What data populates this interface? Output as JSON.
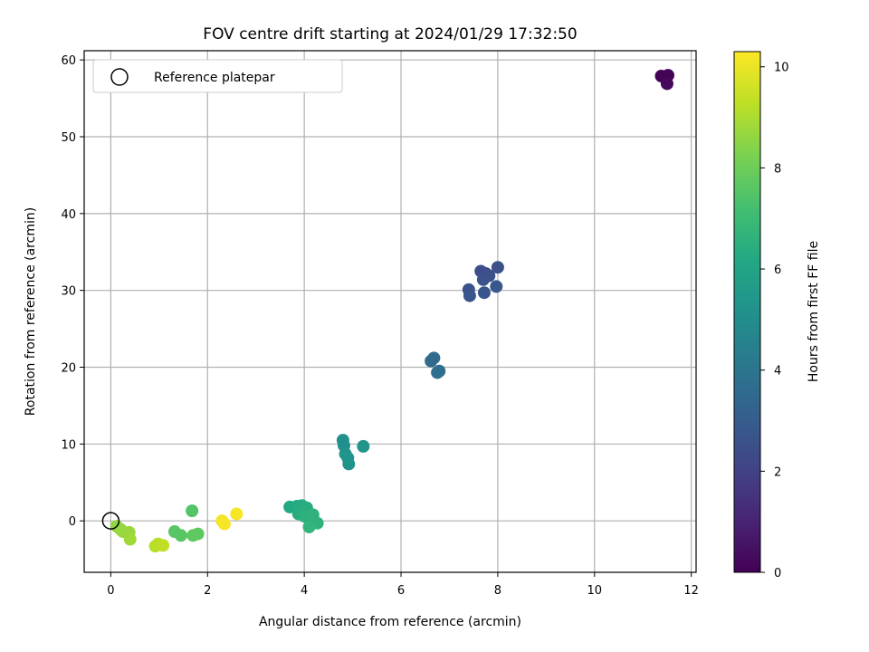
{
  "chart_data": {
    "type": "scatter",
    "title": "FOV centre drift starting at 2024/01/29 17:32:50",
    "xlabel": "Angular distance from reference (arcmin)",
    "ylabel": "Rotation from reference (arcmin)",
    "xlim": [
      -0.55,
      12.1
    ],
    "ylim": [
      -6.7,
      61.2
    ],
    "xticks": [
      0,
      2,
      4,
      6,
      8,
      10,
      12
    ],
    "yticks": [
      0,
      10,
      20,
      30,
      40,
      50,
      60
    ],
    "grid": true,
    "legend": {
      "position": "top-left",
      "entries": [
        "Reference platepar"
      ]
    },
    "reference_point": {
      "name": "Reference platepar",
      "x": 0,
      "y": 0
    },
    "colorbar": {
      "label": "Hours from first FF file",
      "colormap": "viridis",
      "range": [
        0,
        10.3
      ],
      "ticks": [
        0,
        2,
        4,
        6,
        8,
        10
      ]
    },
    "points": [
      {
        "x": 11.38,
        "y": 57.9,
        "c": 0.0
      },
      {
        "x": 11.45,
        "y": 57.7,
        "c": 0.1
      },
      {
        "x": 11.52,
        "y": 58.0,
        "c": 0.1
      },
      {
        "x": 11.5,
        "y": 56.9,
        "c": 0.2
      },
      {
        "x": 7.65,
        "y": 32.5,
        "c": 2.4
      },
      {
        "x": 7.75,
        "y": 32.2,
        "c": 2.4
      },
      {
        "x": 7.82,
        "y": 31.9,
        "c": 2.5
      },
      {
        "x": 8.0,
        "y": 33.0,
        "c": 2.5
      },
      {
        "x": 7.7,
        "y": 31.4,
        "c": 2.6
      },
      {
        "x": 7.4,
        "y": 30.1,
        "c": 2.6
      },
      {
        "x": 7.42,
        "y": 29.3,
        "c": 2.7
      },
      {
        "x": 7.72,
        "y": 29.7,
        "c": 2.7
      },
      {
        "x": 7.97,
        "y": 30.5,
        "c": 2.8
      },
      {
        "x": 6.62,
        "y": 20.8,
        "c": 3.6
      },
      {
        "x": 6.68,
        "y": 21.2,
        "c": 3.6
      },
      {
        "x": 6.75,
        "y": 19.3,
        "c": 3.7
      },
      {
        "x": 6.79,
        "y": 19.5,
        "c": 3.7
      },
      {
        "x": 4.8,
        "y": 10.5,
        "c": 5.1
      },
      {
        "x": 4.82,
        "y": 9.8,
        "c": 5.1
      },
      {
        "x": 4.85,
        "y": 8.7,
        "c": 5.2
      },
      {
        "x": 4.92,
        "y": 7.4,
        "c": 5.2
      },
      {
        "x": 4.9,
        "y": 8.2,
        "c": 5.3
      },
      {
        "x": 5.22,
        "y": 9.7,
        "c": 5.3
      },
      {
        "x": 3.7,
        "y": 1.8,
        "c": 6.2
      },
      {
        "x": 3.85,
        "y": 1.9,
        "c": 6.2
      },
      {
        "x": 3.9,
        "y": 1.6,
        "c": 6.3
      },
      {
        "x": 3.95,
        "y": 2.0,
        "c": 6.3
      },
      {
        "x": 4.05,
        "y": 1.7,
        "c": 6.4
      },
      {
        "x": 3.88,
        "y": 0.9,
        "c": 6.4
      },
      {
        "x": 4.0,
        "y": 0.6,
        "c": 6.5
      },
      {
        "x": 4.15,
        "y": 0.3,
        "c": 6.5
      },
      {
        "x": 4.18,
        "y": 0.8,
        "c": 6.6
      },
      {
        "x": 4.27,
        "y": -0.3,
        "c": 6.6
      },
      {
        "x": 4.1,
        "y": -0.8,
        "c": 6.7
      },
      {
        "x": 1.68,
        "y": 1.3,
        "c": 7.5
      },
      {
        "x": 1.32,
        "y": -1.4,
        "c": 7.6
      },
      {
        "x": 1.45,
        "y": -1.9,
        "c": 7.6
      },
      {
        "x": 1.7,
        "y": -1.9,
        "c": 7.7
      },
      {
        "x": 1.8,
        "y": -1.7,
        "c": 7.7
      },
      {
        "x": 0.12,
        "y": -0.7,
        "c": 8.6
      },
      {
        "x": 0.2,
        "y": -1.1,
        "c": 8.6
      },
      {
        "x": 0.25,
        "y": -1.4,
        "c": 8.7
      },
      {
        "x": 0.38,
        "y": -1.5,
        "c": 8.7
      },
      {
        "x": 0.4,
        "y": -2.4,
        "c": 8.8
      },
      {
        "x": 0.92,
        "y": -3.3,
        "c": 9.2
      },
      {
        "x": 0.98,
        "y": -3.0,
        "c": 9.2
      },
      {
        "x": 1.08,
        "y": -3.2,
        "c": 9.3
      },
      {
        "x": 2.3,
        "y": 0.0,
        "c": 10.1
      },
      {
        "x": 2.35,
        "y": -0.4,
        "c": 10.2
      },
      {
        "x": 2.6,
        "y": 0.9,
        "c": 10.2
      }
    ]
  }
}
